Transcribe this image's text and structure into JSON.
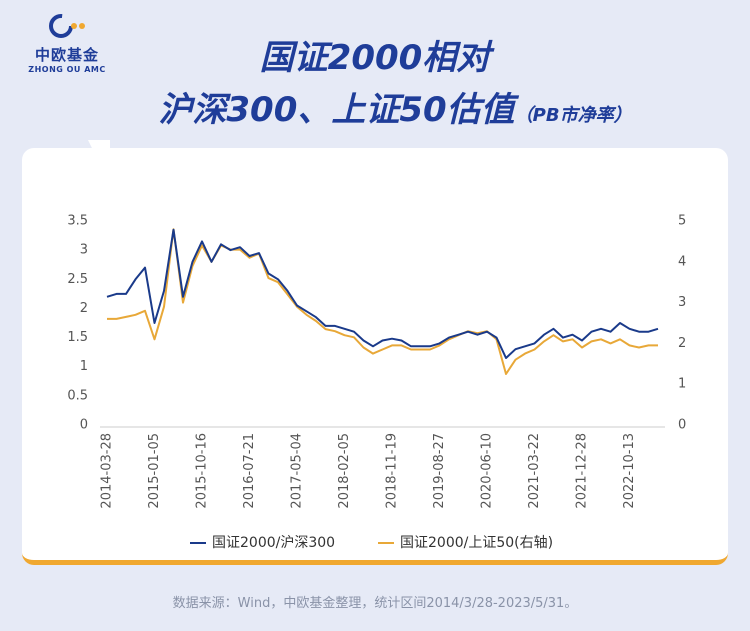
{
  "header": {
    "logo_name": "中欧基金",
    "logo_sub": "ZHONG OU AMC",
    "title_line1": "国证2000相对",
    "title_line2": "沪深300、上证50估值",
    "title_note": "（PB市净率）"
  },
  "chart_data": {
    "type": "line",
    "categories": [
      "2014-03-28",
      null,
      null,
      null,
      null,
      "2015-01-05",
      null,
      null,
      null,
      null,
      "2015-10-16",
      null,
      null,
      null,
      null,
      "2016-07-21",
      null,
      null,
      null,
      null,
      "2017-05-04",
      null,
      null,
      null,
      null,
      "2018-02-05",
      null,
      null,
      null,
      null,
      "2018-11-19",
      null,
      null,
      null,
      null,
      "2019-08-27",
      null,
      null,
      null,
      null,
      "2020-06-10",
      null,
      null,
      null,
      null,
      "2021-03-22",
      null,
      null,
      null,
      null,
      "2021-12-28",
      null,
      null,
      null,
      null,
      "2022-10-13",
      null,
      null,
      null
    ],
    "series": [
      {
        "name": "国证2000/沪深300",
        "color": "#1a3a8a",
        "axis": "y",
        "values": [
          2.2,
          2.25,
          2.25,
          2.5,
          2.7,
          1.75,
          2.3,
          3.35,
          2.2,
          2.8,
          3.15,
          2.8,
          3.1,
          3.0,
          3.05,
          2.9,
          2.95,
          2.6,
          2.5,
          2.3,
          2.05,
          1.95,
          1.85,
          1.7,
          1.7,
          1.65,
          1.6,
          1.45,
          1.35,
          1.45,
          1.48,
          1.45,
          1.35,
          1.35,
          1.35,
          1.4,
          1.5,
          1.55,
          1.6,
          1.55,
          1.6,
          1.5,
          1.15,
          1.3,
          1.35,
          1.4,
          1.55,
          1.65,
          1.5,
          1.55,
          1.45,
          1.6,
          1.65,
          1.6,
          1.75,
          1.65,
          1.6,
          1.6,
          1.65
        ]
      },
      {
        "name": "国证2000/上证50(右轴)",
        "color": "#e8a838",
        "axis": "y2",
        "values": [
          2.6,
          2.6,
          2.65,
          2.7,
          2.8,
          2.1,
          2.9,
          4.8,
          3.0,
          3.9,
          4.4,
          4.0,
          4.4,
          4.3,
          4.3,
          4.1,
          4.2,
          3.6,
          3.5,
          3.2,
          2.9,
          2.7,
          2.55,
          2.35,
          2.3,
          2.2,
          2.15,
          1.9,
          1.75,
          1.85,
          1.95,
          1.95,
          1.85,
          1.85,
          1.85,
          1.95,
          2.1,
          2.2,
          2.3,
          2.25,
          2.3,
          2.1,
          1.25,
          1.6,
          1.75,
          1.85,
          2.05,
          2.2,
          2.05,
          2.1,
          1.9,
          2.05,
          2.1,
          2.0,
          2.1,
          1.95,
          1.9,
          1.95,
          1.95
        ]
      }
    ],
    "ylim": [
      0,
      3.5
    ],
    "yticks": [
      0,
      0.5,
      1,
      1.5,
      2,
      2.5,
      3,
      3.5
    ],
    "y2lim": [
      0,
      5
    ],
    "y2ticks": [
      0,
      1,
      2,
      3,
      4,
      5
    ],
    "grid": false,
    "legend": "bottom"
  },
  "footer": "数据来源：Wind，中欧基金整理，统计区间2014/3/28-2023/5/31。"
}
